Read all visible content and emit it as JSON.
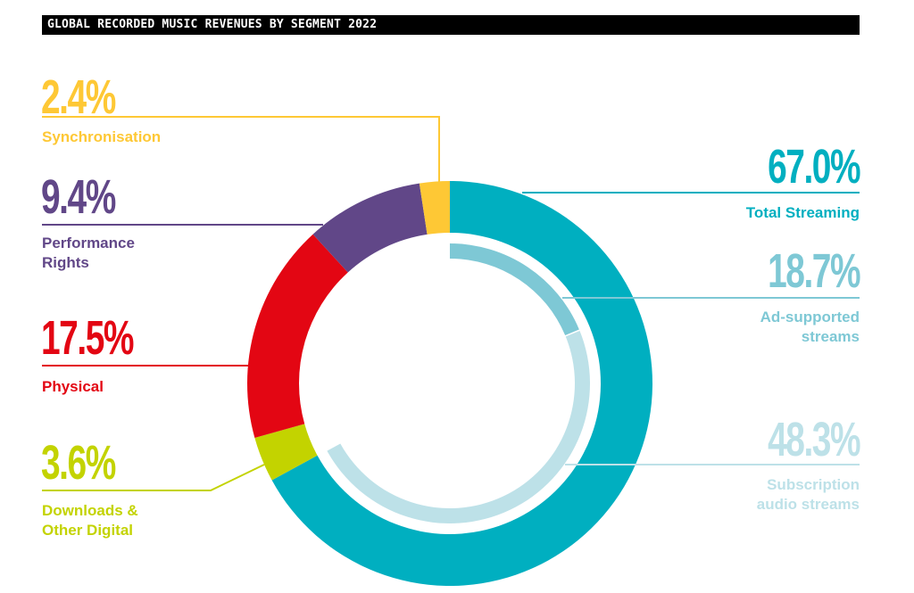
{
  "title": "GLOBAL RECORDED MUSIC REVENUES BY SEGMENT 2022",
  "colors": {
    "streaming": "#00afc0",
    "ad_supported": "#7ec8d5",
    "subscription": "#bde1e8",
    "downloads": "#c3d300",
    "physical": "#e30613",
    "performance": "#614788",
    "synchronisation": "#fec835"
  },
  "labels": {
    "synchronisation": {
      "pct": "2.4%",
      "name": "Synchronisation"
    },
    "performance": {
      "pct": "9.4%",
      "name_line1": "Performance",
      "name_line2": "Rights"
    },
    "physical": {
      "pct": "17.5%",
      "name": "Physical"
    },
    "downloads": {
      "pct": "3.6%",
      "name_line1": "Downloads &",
      "name_line2": "Other Digital"
    },
    "streaming": {
      "pct": "67.0%",
      "name": "Total Streaming"
    },
    "ad_supported": {
      "pct": "18.7%",
      "name_line1": "Ad-supported",
      "name_line2": "streams"
    },
    "subscription": {
      "pct": "48.3%",
      "name_line1": "Subscription",
      "name_line2": "audio streams"
    }
  },
  "chart_data": {
    "type": "pie",
    "title": "GLOBAL RECORDED MUSIC REVENUES BY SEGMENT 2022",
    "unit": "%",
    "categories": [
      "Total Streaming",
      "Downloads & Other Digital",
      "Physical",
      "Performance Rights",
      "Synchronisation"
    ],
    "values": [
      67.0,
      3.6,
      17.5,
      9.4,
      2.4
    ],
    "sub_breakdown": {
      "parent": "Total Streaming",
      "categories": [
        "Ad-supported streams",
        "Subscription audio streams"
      ],
      "values": [
        18.7,
        48.3
      ]
    },
    "style": "donut with inner streaming sub-ring",
    "legend": "leader-line labels around donut"
  }
}
